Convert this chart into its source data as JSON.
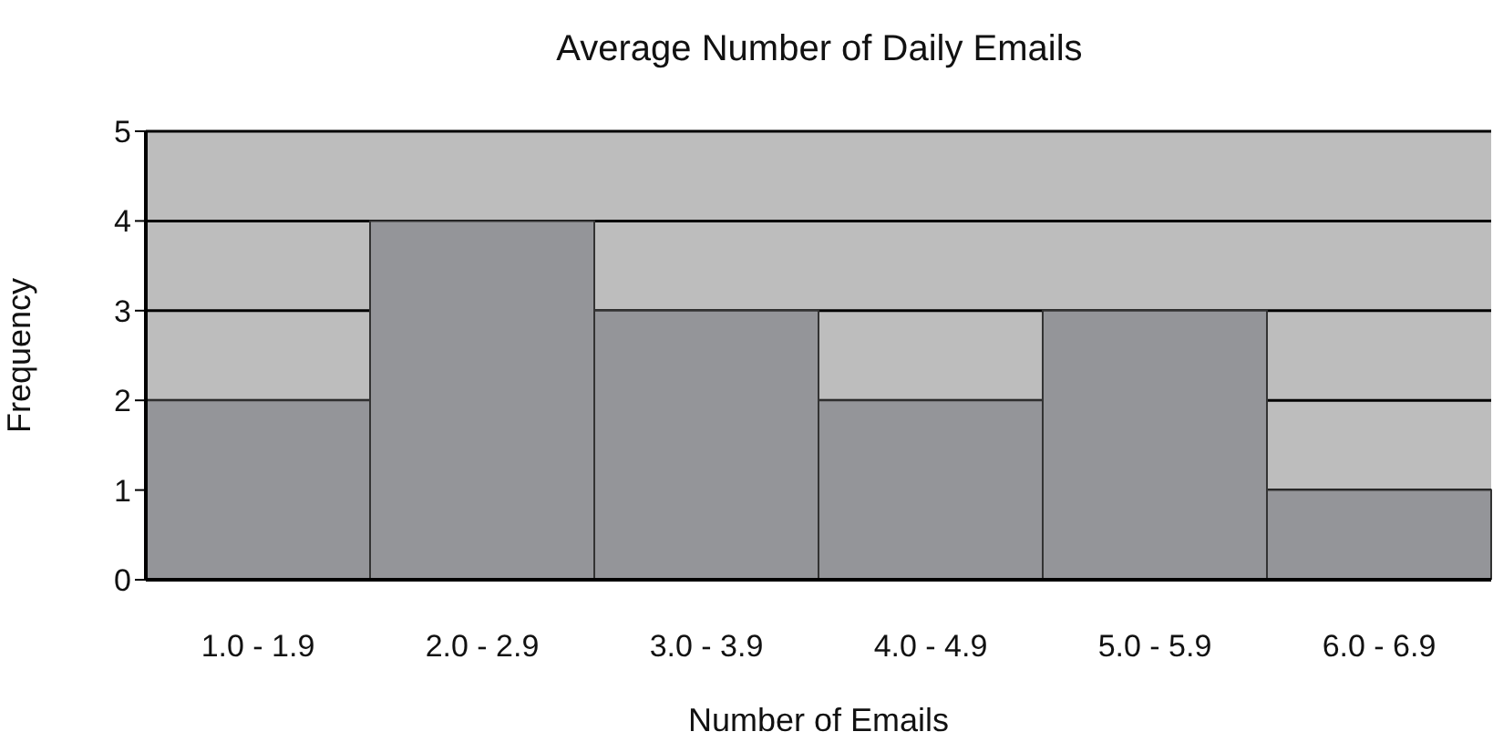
{
  "chart_data": {
    "type": "bar",
    "title": "Average Number of Daily Emails",
    "xlabel": "Number of Emails",
    "ylabel": "Frequency",
    "categories": [
      "1.0 - 1.9",
      "2.0 - 2.9",
      "3.0 - 3.9",
      "4.0 - 4.9",
      "5.0 - 5.9",
      "6.0 - 6.9"
    ],
    "values": [
      2,
      4,
      3,
      2,
      3,
      1
    ],
    "color": "#949599",
    "ylim": [
      0,
      5
    ],
    "yticks": [
      0,
      1,
      2,
      3,
      4,
      5
    ],
    "grid": "y"
  }
}
